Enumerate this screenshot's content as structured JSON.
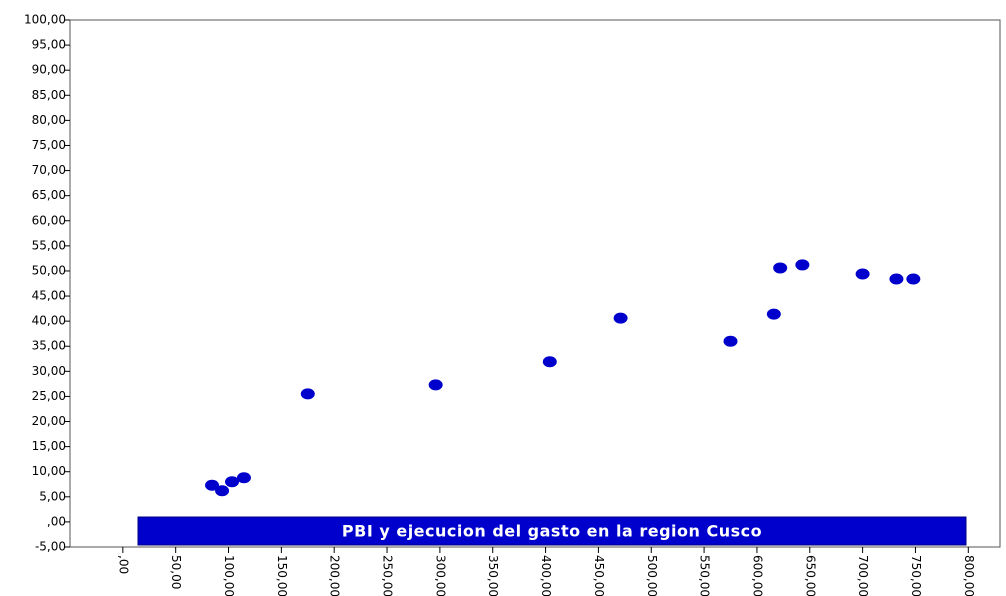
{
  "chart_data": {
    "type": "scatter",
    "title": "PBI y ejecucion del gasto en la region Cusco",
    "color": "#0000cc",
    "x": [
      84.4,
      93.9,
      103.3,
      114.6,
      175,
      296,
      404,
      471,
      575,
      616,
      622,
      643,
      700,
      732,
      748
    ],
    "values": [
      7.3,
      6.2,
      8.0,
      8.8,
      25.5,
      27.3,
      31.9,
      40.6,
      36.0,
      41.4,
      50.6,
      51.2,
      49.4,
      48.4,
      48.4
    ],
    "xlim": [
      -50,
      830
    ],
    "ylim": [
      -5,
      100
    ],
    "xticks": [
      {
        "value": 0,
        "label": ",00"
      },
      {
        "value": 50,
        "label": "50,00"
      },
      {
        "value": 100,
        "label": "100,00"
      },
      {
        "value": 150,
        "label": "150,00"
      },
      {
        "value": 200,
        "label": "200,00"
      },
      {
        "value": 250,
        "label": "250,00"
      },
      {
        "value": 300,
        "label": "300,00"
      },
      {
        "value": 350,
        "label": "350,00"
      },
      {
        "value": 400,
        "label": "400,00"
      },
      {
        "value": 450,
        "label": "450,00"
      },
      {
        "value": 500,
        "label": "500,00"
      },
      {
        "value": 550,
        "label": "550,00"
      },
      {
        "value": 600,
        "label": "600,00"
      },
      {
        "value": 650,
        "label": "650,00"
      },
      {
        "value": 700,
        "label": "700,00"
      },
      {
        "value": 750,
        "label": "750,00"
      },
      {
        "value": 800,
        "label": "800,00"
      }
    ],
    "yticks": [
      {
        "value": -5,
        "label": "-5,00"
      },
      {
        "value": 0,
        "label": ",00"
      },
      {
        "value": 5,
        "label": "5,00"
      },
      {
        "value": 10,
        "label": "10,00"
      },
      {
        "value": 15,
        "label": "15,00"
      },
      {
        "value": 20,
        "label": "20,00"
      },
      {
        "value": 25,
        "label": "25,00"
      },
      {
        "value": 30,
        "label": "30,00"
      },
      {
        "value": 35,
        "label": "35,00"
      },
      {
        "value": 40,
        "label": "40,00"
      },
      {
        "value": 45,
        "label": "45,00"
      },
      {
        "value": 50,
        "label": "50,00"
      },
      {
        "value": 55,
        "label": "55,00"
      },
      {
        "value": 60,
        "label": "60,00"
      },
      {
        "value": 65,
        "label": "65,00"
      },
      {
        "value": 70,
        "label": "70,00"
      },
      {
        "value": 75,
        "label": "75,00"
      },
      {
        "value": 80,
        "label": "80,00"
      },
      {
        "value": 85,
        "label": "85,00"
      },
      {
        "value": 90,
        "label": "90,00"
      },
      {
        "value": 95,
        "label": "95,00"
      },
      {
        "value": 100,
        "label": "100,00"
      }
    ]
  }
}
